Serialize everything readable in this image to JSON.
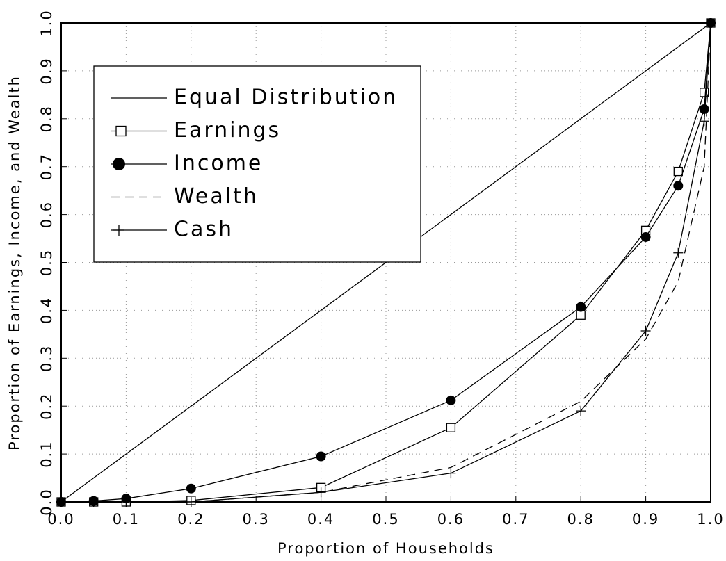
{
  "chart_data": {
    "type": "line",
    "xlabel": "Proportion of Households",
    "ylabel": "Proportion of Earnings, Income, and Wealth",
    "x": [
      0,
      0.05,
      0.1,
      0.2,
      0.4,
      0.6,
      0.8,
      0.9,
      0.95,
      0.99,
      1.0
    ],
    "series": [
      {
        "name": "Equal Distribution",
        "color": "#000000",
        "marker": "none",
        "linestyle": "solid",
        "x": [
          0,
          1
        ],
        "values": [
          0,
          1
        ]
      },
      {
        "name": "Earnings",
        "color": "#000000",
        "marker": "square",
        "linestyle": "solid",
        "values": [
          0,
          0,
          0,
          0.003,
          0.03,
          0.155,
          0.39,
          0.567,
          0.69,
          0.855,
          1.0
        ]
      },
      {
        "name": "Income",
        "color": "#000000",
        "marker": "circle",
        "linestyle": "solid",
        "values": [
          0,
          0.002,
          0.007,
          0.028,
          0.095,
          0.212,
          0.407,
          0.553,
          0.66,
          0.82,
          1.0
        ]
      },
      {
        "name": "Wealth",
        "color": "#000000",
        "marker": "none",
        "linestyle": "dashed",
        "values": [
          0,
          0,
          0,
          0,
          0.02,
          0.072,
          0.21,
          0.34,
          0.46,
          0.7,
          1.0
        ]
      },
      {
        "name": "Cash",
        "color": "#000000",
        "marker": "plus",
        "linestyle": "solid",
        "values": [
          0,
          0,
          0,
          0,
          0.02,
          0.06,
          0.19,
          0.357,
          0.52,
          0.795,
          1.0
        ]
      }
    ],
    "xlim": [
      0,
      1
    ],
    "ylim": [
      0,
      1
    ],
    "xticks": [
      {
        "value": 0,
        "label": "0.0"
      },
      0.1,
      0.2,
      0.3,
      0.4,
      0.5,
      0.6,
      0.7,
      0.8,
      0.9,
      {
        "value": 1,
        "label": "1.0"
      }
    ],
    "yticks": [
      {
        "value": 0,
        "label": "0.0"
      },
      0.1,
      0.2,
      0.3,
      0.4,
      0.5,
      0.6,
      0.7,
      0.8,
      0.9,
      {
        "value": 1,
        "label": "1.0"
      }
    ],
    "grid": true,
    "legend": "upper left"
  }
}
